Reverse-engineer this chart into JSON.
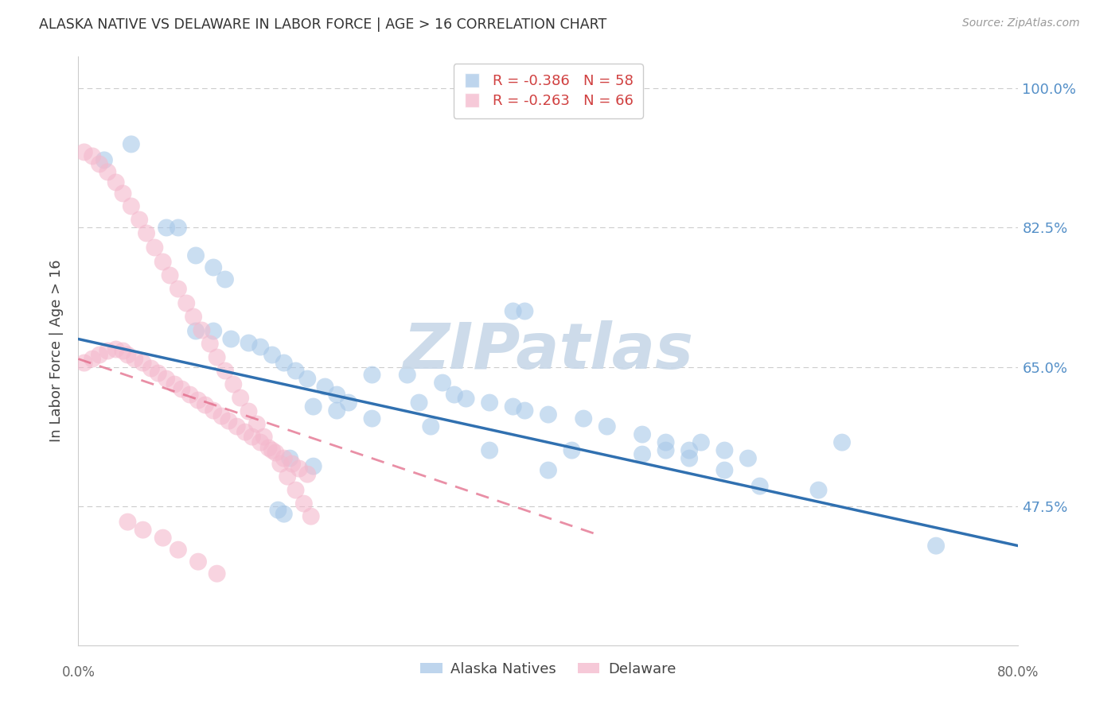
{
  "title": "ALASKA NATIVE VS DELAWARE IN LABOR FORCE | AGE > 16 CORRELATION CHART",
  "source": "Source: ZipAtlas.com",
  "ylabel": "In Labor Force | Age > 16",
  "ytick_values": [
    0.475,
    0.65,
    0.825,
    1.0
  ],
  "ytick_labels": [
    "47.5%",
    "65.0%",
    "82.5%",
    "100.0%"
  ],
  "xmin": 0.0,
  "xmax": 0.8,
  "ymin": 0.3,
  "ymax": 1.04,
  "color_blue": "#a8c8e8",
  "color_pink": "#f4b8cc",
  "color_blue_line": "#3070b0",
  "color_pink_line": "#e06080",
  "color_axis_labels": "#5590c8",
  "alaska_trendline_x": [
    0.0,
    0.8
  ],
  "alaska_trendline_y": [
    0.685,
    0.425
  ],
  "delaware_trendline_x": [
    0.0,
    0.44
  ],
  "delaware_trendline_y": [
    0.66,
    0.44
  ],
  "alaska_points_x": [
    0.022,
    0.045,
    0.075,
    0.085,
    0.1,
    0.115,
    0.125,
    0.1,
    0.115,
    0.13,
    0.145,
    0.155,
    0.165,
    0.175,
    0.185,
    0.195,
    0.21,
    0.22,
    0.23,
    0.25,
    0.28,
    0.31,
    0.29,
    0.32,
    0.33,
    0.35,
    0.37,
    0.38,
    0.4,
    0.43,
    0.45,
    0.48,
    0.5,
    0.52,
    0.53,
    0.55,
    0.57,
    0.37,
    0.38,
    0.42,
    0.48,
    0.52,
    0.55,
    0.65,
    0.2,
    0.22,
    0.25,
    0.3,
    0.35,
    0.4,
    0.5,
    0.58,
    0.63,
    0.73,
    0.18,
    0.2,
    0.17,
    0.175
  ],
  "alaska_points_y": [
    0.91,
    0.93,
    0.825,
    0.825,
    0.79,
    0.775,
    0.76,
    0.695,
    0.695,
    0.685,
    0.68,
    0.675,
    0.665,
    0.655,
    0.645,
    0.635,
    0.625,
    0.615,
    0.605,
    0.64,
    0.64,
    0.63,
    0.605,
    0.615,
    0.61,
    0.605,
    0.6,
    0.595,
    0.59,
    0.585,
    0.575,
    0.565,
    0.555,
    0.545,
    0.555,
    0.545,
    0.535,
    0.72,
    0.72,
    0.545,
    0.54,
    0.535,
    0.52,
    0.555,
    0.6,
    0.595,
    0.585,
    0.575,
    0.545,
    0.52,
    0.545,
    0.5,
    0.495,
    0.425,
    0.535,
    0.525,
    0.47,
    0.465
  ],
  "delaware_points_x": [
    0.005,
    0.012,
    0.018,
    0.025,
    0.032,
    0.038,
    0.042,
    0.048,
    0.055,
    0.062,
    0.068,
    0.075,
    0.082,
    0.088,
    0.095,
    0.102,
    0.108,
    0.115,
    0.122,
    0.128,
    0.135,
    0.142,
    0.148,
    0.155,
    0.162,
    0.168,
    0.175,
    0.182,
    0.188,
    0.195,
    0.005,
    0.012,
    0.018,
    0.025,
    0.032,
    0.038,
    0.045,
    0.052,
    0.058,
    0.065,
    0.072,
    0.078,
    0.085,
    0.092,
    0.098,
    0.105,
    0.112,
    0.118,
    0.125,
    0.132,
    0.138,
    0.145,
    0.152,
    0.158,
    0.165,
    0.172,
    0.178,
    0.185,
    0.192,
    0.198,
    0.042,
    0.055,
    0.072,
    0.085,
    0.102,
    0.118
  ],
  "delaware_points_y": [
    0.655,
    0.66,
    0.665,
    0.67,
    0.672,
    0.67,
    0.665,
    0.66,
    0.655,
    0.648,
    0.642,
    0.635,
    0.628,
    0.622,
    0.615,
    0.608,
    0.602,
    0.595,
    0.588,
    0.582,
    0.575,
    0.568,
    0.562,
    0.555,
    0.548,
    0.542,
    0.535,
    0.528,
    0.522,
    0.515,
    0.92,
    0.915,
    0.905,
    0.895,
    0.882,
    0.868,
    0.852,
    0.835,
    0.818,
    0.8,
    0.782,
    0.765,
    0.748,
    0.73,
    0.713,
    0.696,
    0.679,
    0.662,
    0.645,
    0.628,
    0.611,
    0.594,
    0.578,
    0.562,
    0.545,
    0.528,
    0.512,
    0.495,
    0.478,
    0.462,
    0.455,
    0.445,
    0.435,
    0.42,
    0.405,
    0.39
  ]
}
